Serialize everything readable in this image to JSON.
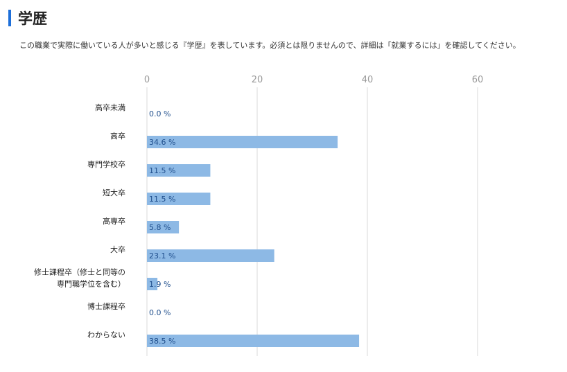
{
  "section": {
    "title": "学歴",
    "description": "この職業で実際に働いている人が多いと感じる『学歴』を表しています。必須とは限りませんので、詳細は「就業するには」を確認してください。"
  },
  "colors": {
    "accent": "#1e6fd9",
    "bar": "#8db9e5",
    "label_value": "#1f4e8c",
    "grid": "#d9d9d9",
    "tick": "#999999"
  },
  "chart_data": {
    "type": "bar",
    "orientation": "horizontal",
    "title": "",
    "xlabel": "",
    "ylabel": "",
    "xlim": [
      0,
      60
    ],
    "ticks": [
      0,
      20,
      40,
      60
    ],
    "tick_labels": [
      "0",
      "20",
      "40",
      "60"
    ],
    "unit": "%",
    "grid": true,
    "categories": [
      [
        "高卒未満"
      ],
      [
        "高卒"
      ],
      [
        "専門学校卒"
      ],
      [
        "短大卒"
      ],
      [
        "高専卒"
      ],
      [
        "大卒"
      ],
      [
        "修士課程卒（修士と同等の",
        "専門職学位を含む）"
      ],
      [
        "博士課程卒"
      ],
      [
        "わからない"
      ]
    ],
    "values": [
      0.0,
      34.6,
      11.5,
      11.5,
      5.8,
      23.1,
      1.9,
      0.0,
      38.5
    ],
    "value_labels": [
      "0.0 %",
      "34.6 %",
      "11.5 %",
      "11.5 %",
      "5.8 %",
      "23.1 %",
      "1.9 %",
      "0.0 %",
      "38.5 %"
    ]
  }
}
